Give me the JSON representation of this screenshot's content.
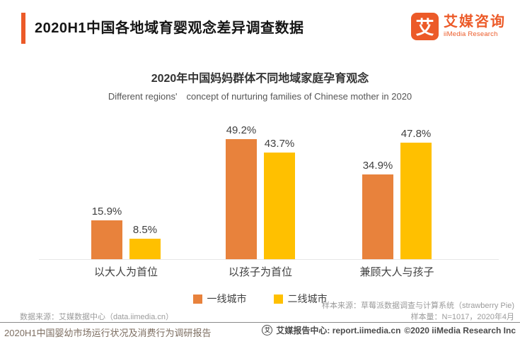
{
  "header": {
    "title": "2020H1中国各地域育婴观念差异调查数据",
    "logo": {
      "mark": "艾",
      "name_cn": "艾媒咨询",
      "name_en": "iiMedia Research"
    }
  },
  "chart_data": {
    "type": "bar",
    "title": "2020年中国妈妈群体不同地域家庭孕育观念",
    "subtitle": "Different regions'　concept of nurturing families of Chinese mother in 2020",
    "categories": [
      "以大人为首位",
      "以孩子为首位",
      "兼顾大人与孩子"
    ],
    "series": [
      {
        "name": "一线城市",
        "color": "#E8823C",
        "values": [
          15.9,
          49.2,
          34.9
        ]
      },
      {
        "name": "二线城市",
        "color": "#FFC000",
        "values": [
          8.5,
          43.7,
          47.8
        ]
      }
    ],
    "value_suffix": "%",
    "ylim": [
      0,
      55
    ],
    "grid": false,
    "legend_position": "bottom"
  },
  "sources": {
    "data_source": "数据来源：艾媒数据中心（data.iimedia.cn）",
    "sample_source": "样本来源：草莓派数据调查与计算系统（strawberry Pie)",
    "sample_size": "样本量：N=1017，2020年4月"
  },
  "footer": {
    "report_title": "2020H1中国婴幼市场运行状况及消费行为调研报告",
    "icon_glyph": "艾",
    "report_center": "艾媒报告中心: report.iimedia.cn",
    "copyright": "©2020  iiMedia Research Inc"
  },
  "colors": {
    "brand_orange": "#EC5A28",
    "bar_orange": "#E8823C",
    "bar_yellow": "#FFC000",
    "axis_line": "#e7e7e7"
  }
}
